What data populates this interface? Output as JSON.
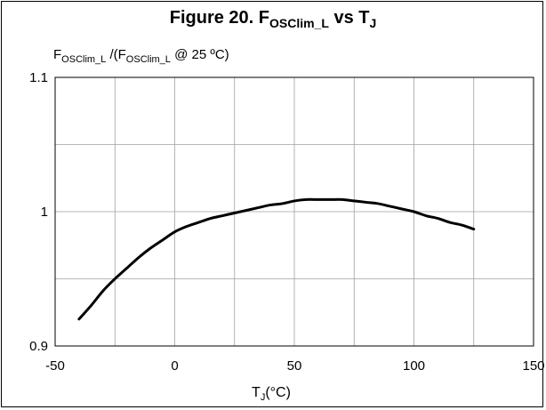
{
  "chart_data": {
    "type": "line",
    "title": {
      "prefix": "Figure 20. F",
      "sub1": "OSClim_L",
      "mid": " vs T",
      "sub2": "J"
    },
    "ylabel": {
      "p1": "F",
      "s1": "OSClim_L",
      "p2": " /(F",
      "s2": "OSClim_L",
      "p3": " @ 25 ºC)"
    },
    "xlabel": {
      "p1": "T",
      "s1": "J",
      "p2": "(°C)"
    },
    "xlim": [
      -50,
      150
    ],
    "ylim": [
      0.9,
      1.1
    ],
    "xticks": [
      -50,
      0,
      50,
      100,
      150
    ],
    "yticks": [
      0.9,
      1,
      1.1
    ],
    "xtick_labels": [
      "-50",
      "0",
      "50",
      "100",
      "150"
    ],
    "ytick_labels": [
      "0.9",
      "1",
      "1.1"
    ],
    "grid": true,
    "minor_x_grid_step": 25,
    "minor_y_grid_step": 0.05,
    "series": [
      {
        "color": "#000000",
        "x": [
          -40,
          -35,
          -30,
          -25,
          -20,
          -15,
          -10,
          -5,
          0,
          5,
          10,
          15,
          20,
          25,
          30,
          35,
          40,
          45,
          50,
          55,
          60,
          65,
          70,
          75,
          80,
          85,
          90,
          95,
          100,
          105,
          110,
          115,
          120,
          125
        ],
        "y": [
          0.92,
          0.93,
          0.941,
          0.95,
          0.958,
          0.966,
          0.973,
          0.979,
          0.985,
          0.989,
          0.992,
          0.995,
          0.997,
          0.999,
          1.001,
          1.003,
          1.005,
          1.006,
          1.008,
          1.009,
          1.009,
          1.009,
          1.009,
          1.008,
          1.007,
          1.006,
          1.004,
          1.002,
          1.0,
          0.997,
          0.995,
          0.992,
          0.99,
          0.987
        ]
      }
    ]
  }
}
